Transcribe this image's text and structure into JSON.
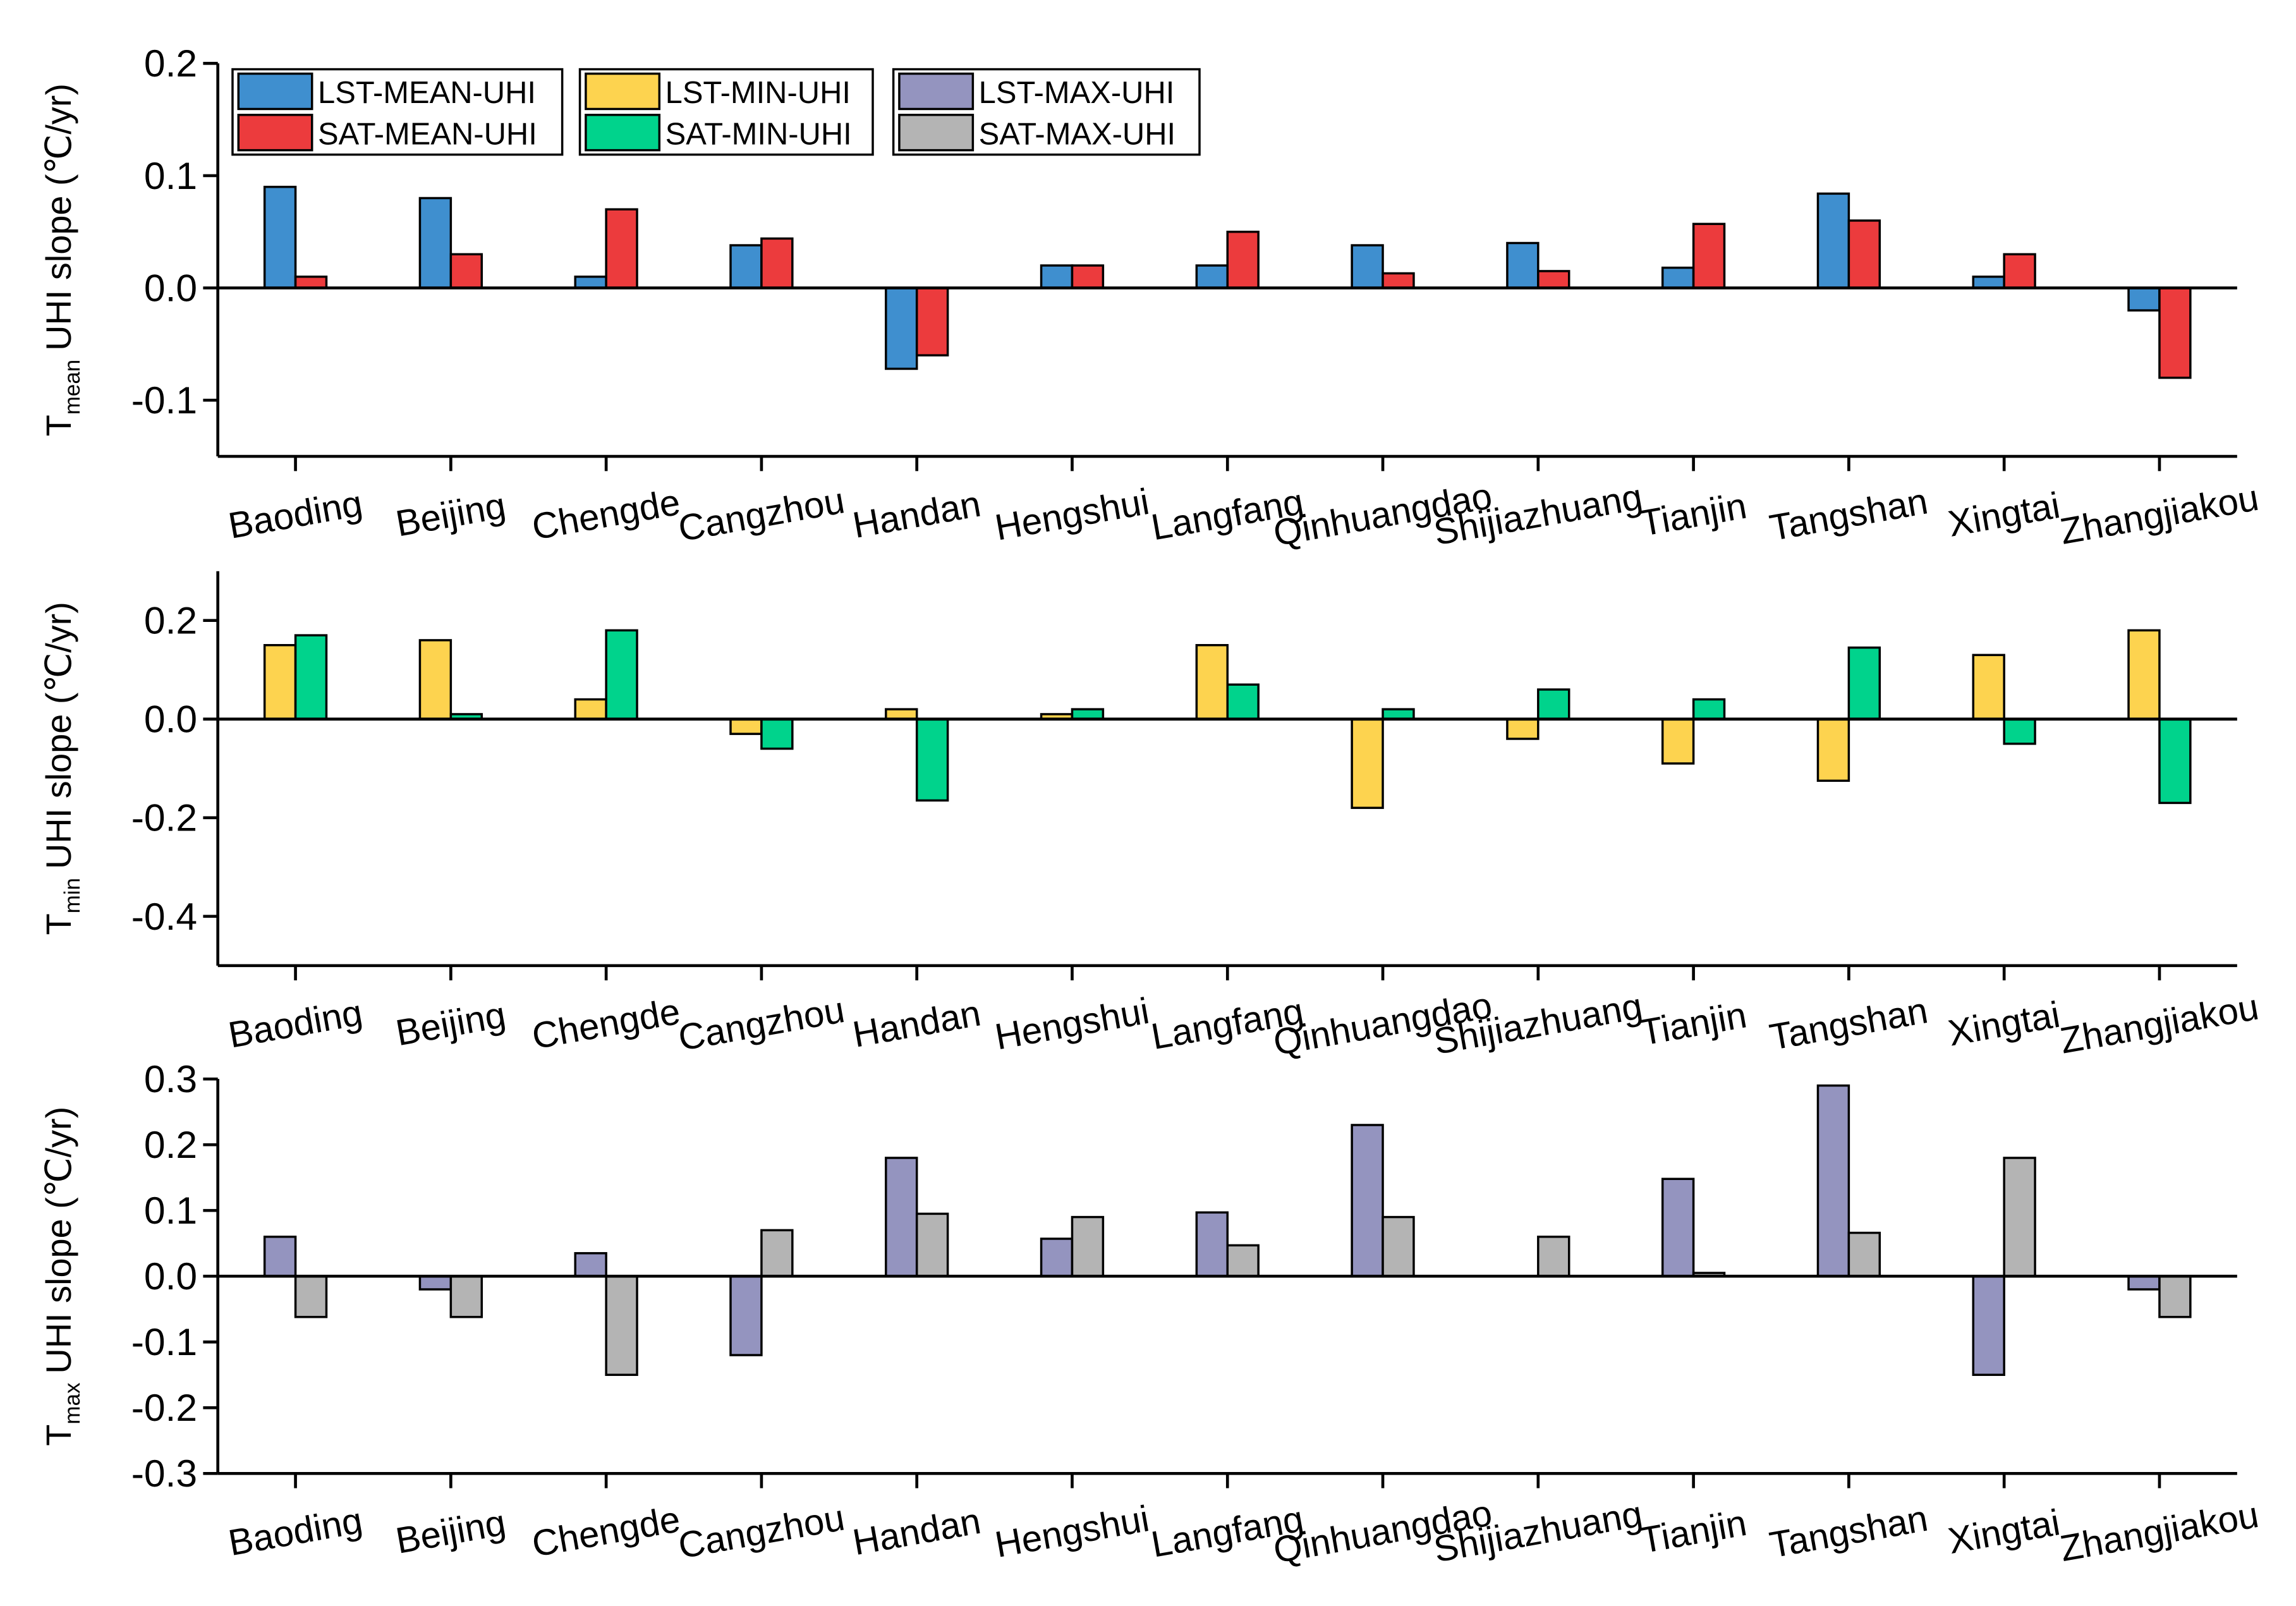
{
  "chart_data": [
    {
      "type": "bar",
      "y_label": {
        "main": "T",
        "sub": "mean",
        "rest": "UHI slope (℃/yr)"
      },
      "categories": [
        "Baoding",
        "Beijing",
        "Chengde",
        "Cangzhou",
        "Handan",
        "Hengshui",
        "Langfang",
        "Qinhuangdao",
        "Shijiazhuang",
        "Tianjin",
        "Tangshan",
        "Xingtai",
        "Zhangjiakou"
      ],
      "series": [
        {
          "name": "LST-MEAN-UHI",
          "color": "#3f8fcf",
          "values": [
            0.09,
            0.08,
            0.01,
            0.038,
            -0.072,
            0.02,
            0.02,
            0.038,
            0.04,
            0.018,
            0.084,
            0.01,
            -0.02
          ]
        },
        {
          "name": "SAT-MEAN-UHI",
          "color": "#ec3b3d",
          "values": [
            0.01,
            0.03,
            0.07,
            0.044,
            -0.06,
            0.02,
            0.05,
            0.013,
            0.015,
            0.057,
            0.06,
            0.03,
            -0.08
          ]
        }
      ],
      "ylim": [
        -0.15,
        0.2
      ],
      "yticks": [
        0.2,
        0.1,
        {
          "value": 0,
          "label": "0.0"
        },
        -0.1
      ],
      "legend": "upper left"
    },
    {
      "type": "bar",
      "y_label": {
        "main": "T",
        "sub": "min",
        "rest": "UHI slope (℃/yr)"
      },
      "categories": [
        "Baoding",
        "Beijing",
        "Chengde",
        "Cangzhou",
        "Handan",
        "Hengshui",
        "Langfang",
        "Qinhuangdao",
        "Shijiazhuang",
        "Tianjin",
        "Tangshan",
        "Xingtai",
        "Zhangjiakou"
      ],
      "series": [
        {
          "name": "LST-MIN-UHI",
          "color": "#fdd34f",
          "values": [
            0.15,
            0.16,
            0.04,
            -0.03,
            0.02,
            0.01,
            0.15,
            -0.18,
            -0.04,
            -0.09,
            -0.125,
            0.13,
            0.18
          ]
        },
        {
          "name": "SAT-MIN-UHI",
          "color": "#00d38c",
          "values": [
            0.17,
            0.01,
            0.18,
            -0.06,
            -0.165,
            0.02,
            0.07,
            0.02,
            0.06,
            0.04,
            0.145,
            -0.05,
            -0.17
          ]
        }
      ],
      "ylim": [
        -0.5,
        0.3
      ],
      "yticks": [
        0.2,
        {
          "value": 0,
          "label": "0.0"
        },
        -0.2,
        -0.4
      ]
    },
    {
      "type": "bar",
      "y_label": {
        "main": "T",
        "sub": "max",
        "rest": "UHI slope (℃/yr)"
      },
      "categories": [
        "Baoding",
        "Beijing",
        "Chengde",
        "Cangzhou",
        "Handan",
        "Hengshui",
        "Langfang",
        "Qinhuangdao",
        "Shijiazhuang",
        "Tianjin",
        "Tangshan",
        "Xingtai",
        "Zhangjiakou"
      ],
      "series": [
        {
          "name": "LST-MAX-UHI",
          "color": "#9494bf",
          "values": [
            0.06,
            -0.02,
            0.035,
            -0.12,
            0.18,
            0.057,
            0.097,
            0.23,
            0,
            0.148,
            0.29,
            -0.15,
            -0.02
          ]
        },
        {
          "name": "SAT-MAX-UHI",
          "color": "#b4b4b4",
          "values": [
            -0.062,
            -0.062,
            -0.15,
            0.07,
            0.095,
            0.09,
            0.047,
            0.09,
            0.06,
            0.005,
            0.066,
            0.18,
            -0.062
          ]
        }
      ],
      "ylim": [
        -0.3,
        0.3
      ],
      "yticks": [
        0.3,
        0.2,
        0.1,
        {
          "value": 0,
          "label": "0.0"
        },
        -0.1,
        -0.2,
        -0.3
      ]
    }
  ]
}
